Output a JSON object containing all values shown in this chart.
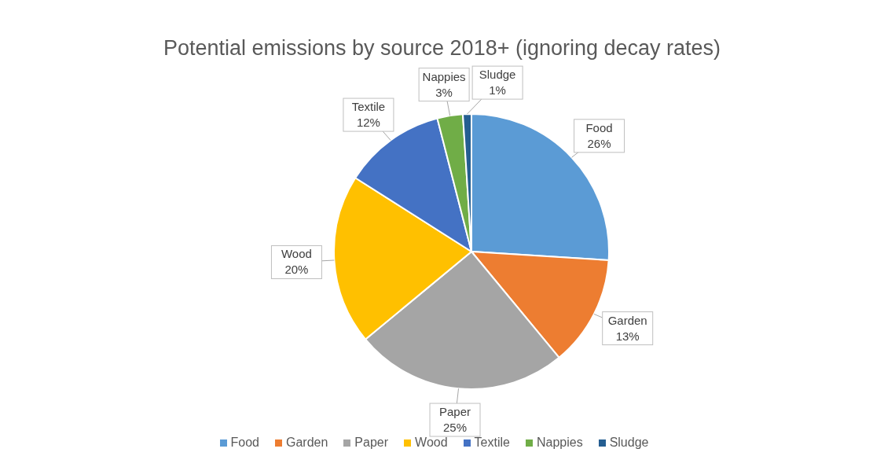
{
  "chart_data": {
    "type": "pie",
    "title": "Potential emissions by source 2018+ (ignoring decay rates)",
    "categories": [
      "Food",
      "Garden",
      "Paper",
      "Wood",
      "Textile",
      "Nappies",
      "Sludge"
    ],
    "values": [
      26,
      13,
      25,
      20,
      12,
      3,
      1
    ],
    "value_labels": [
      "26%",
      "13%",
      "25%",
      "20%",
      "12%",
      "3%",
      "1%"
    ],
    "colors": [
      "#5b9bd5",
      "#ed7d31",
      "#a5a5a5",
      "#ffc000",
      "#4472c4",
      "#70ad47",
      "#255e91"
    ],
    "legend": "bottom"
  }
}
